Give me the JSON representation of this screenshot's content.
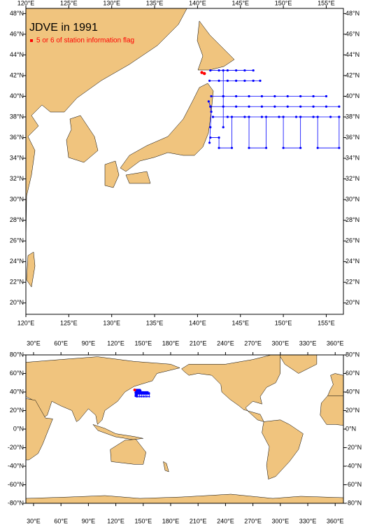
{
  "maps": [
    {
      "title": "JDVE in 1991",
      "legend": {
        "label": "5 or 6 of station information flag",
        "color": "#ff0000"
      },
      "lonlim": [
        120,
        157
      ],
      "latlim": [
        18.9,
        48.5
      ],
      "lonticks": [
        {
          "value": 120,
          "label": "120°E"
        },
        {
          "value": 125,
          "label": "125°E"
        },
        {
          "value": 130,
          "label": "130°E"
        },
        {
          "value": 135,
          "label": "135°E"
        },
        {
          "value": 140,
          "label": "140°E"
        },
        {
          "value": 145,
          "label": "145°E"
        },
        {
          "value": 150,
          "label": "150°E"
        },
        {
          "value": 155,
          "label": "155°E"
        }
      ],
      "latticks": [
        {
          "value": 20,
          "label": "20°N"
        },
        {
          "value": 22,
          "label": "22°N"
        },
        {
          "value": 24,
          "label": "24°N"
        },
        {
          "value": 26,
          "label": "26°N"
        },
        {
          "value": 28,
          "label": "28°N"
        },
        {
          "value": 30,
          "label": "30°N"
        },
        {
          "value": 32,
          "label": "32°N"
        },
        {
          "value": 34,
          "label": "34°N"
        },
        {
          "value": 36,
          "label": "36°N"
        },
        {
          "value": 38,
          "label": "38°N"
        },
        {
          "value": 40,
          "label": "40°N"
        },
        {
          "value": 42,
          "label": "42°N"
        },
        {
          "value": 44,
          "label": "44°N"
        },
        {
          "value": 46,
          "label": "46°N"
        },
        {
          "value": 48,
          "label": "48°N"
        }
      ]
    },
    {
      "lonlim": [
        21.6,
        369
      ],
      "latlim": [
        -80,
        80
      ],
      "lonticks": [
        {
          "value": 30,
          "label": "30°E"
        },
        {
          "value": 60,
          "label": "60°E"
        },
        {
          "value": 90,
          "label": "90°E"
        },
        {
          "value": 120,
          "label": "120°E"
        },
        {
          "value": 150,
          "label": "150°E"
        },
        {
          "value": 180,
          "label": "180°E"
        },
        {
          "value": 210,
          "label": "210°E"
        },
        {
          "value": 240,
          "label": "240°E"
        },
        {
          "value": 270,
          "label": "270°E"
        },
        {
          "value": 300,
          "label": "300°E"
        },
        {
          "value": 330,
          "label": "330°E"
        },
        {
          "value": 360,
          "label": "360°E"
        }
      ],
      "latticks": [
        {
          "value": -80,
          "label": "-80°N"
        },
        {
          "value": -60,
          "label": "-60°N"
        },
        {
          "value": -40,
          "label": "-40°N"
        },
        {
          "value": -20,
          "label": "-20°N"
        },
        {
          "value": 0,
          "label": "0°N"
        },
        {
          "value": 20,
          "label": "20°N"
        },
        {
          "value": 40,
          "label": "40°N"
        },
        {
          "value": 60,
          "label": "60°N"
        },
        {
          "value": 80,
          "label": "80°N"
        }
      ]
    }
  ],
  "station_color": "#0000ff",
  "tracks": [
    {
      "lon": [
        141.5,
        142.5,
        143.5,
        144.5,
        145.5,
        146.5
      ],
      "lat": [
        42.5,
        42.5,
        42.5,
        42.5,
        42.5,
        42.5
      ]
    },
    {
      "lon": [
        141.4,
        142.5,
        143.5,
        144.5,
        145.5,
        146.5,
        147.3
      ],
      "lat": [
        41.5,
        41.5,
        41.5,
        41.5,
        41.5,
        41.5,
        41.5
      ]
    },
    {
      "lon": [
        141.6,
        143,
        144.5,
        146,
        147.5,
        149,
        150.5,
        152,
        153.5,
        155
      ],
      "lat": [
        40,
        40,
        40,
        40,
        40,
        40,
        40,
        40,
        40,
        40
      ]
    },
    {
      "lon": [
        141.5,
        143,
        144.5,
        146,
        147.5,
        149,
        150.5,
        152,
        153.5,
        155,
        156.5
      ],
      "lat": [
        39,
        39,
        39,
        39,
        39,
        39,
        39,
        39,
        39,
        39,
        39
      ]
    },
    {
      "lon": [
        141.8,
        143.5,
        145.5,
        147.5,
        149.5,
        151.5,
        153.5,
        155.5,
        156.5
      ],
      "lat": [
        38,
        38,
        38,
        38,
        38,
        38,
        38,
        38,
        38
      ]
    },
    {
      "lon": [
        141.5,
        142.5,
        142.5,
        144,
        144,
        146,
        146,
        148,
        148,
        150,
        150,
        152,
        152,
        154,
        154,
        156.5,
        156.5
      ],
      "lat": [
        36,
        36,
        35,
        35,
        38,
        38,
        35,
        35,
        38,
        38,
        35,
        35,
        38,
        38,
        35,
        35,
        38
      ]
    },
    {
      "lon": [
        141.3,
        141.5,
        141.6,
        141.5,
        141.4
      ],
      "lat": [
        39.5,
        39,
        38.5,
        37,
        35.5
      ]
    },
    {
      "lon": [
        143,
        143,
        143
      ],
      "lat": [
        42.5,
        40,
        37
      ]
    }
  ],
  "flagged": {
    "lon": [
      140.5,
      140.8
    ],
    "lat": [
      42.3,
      42.2
    ]
  }
}
